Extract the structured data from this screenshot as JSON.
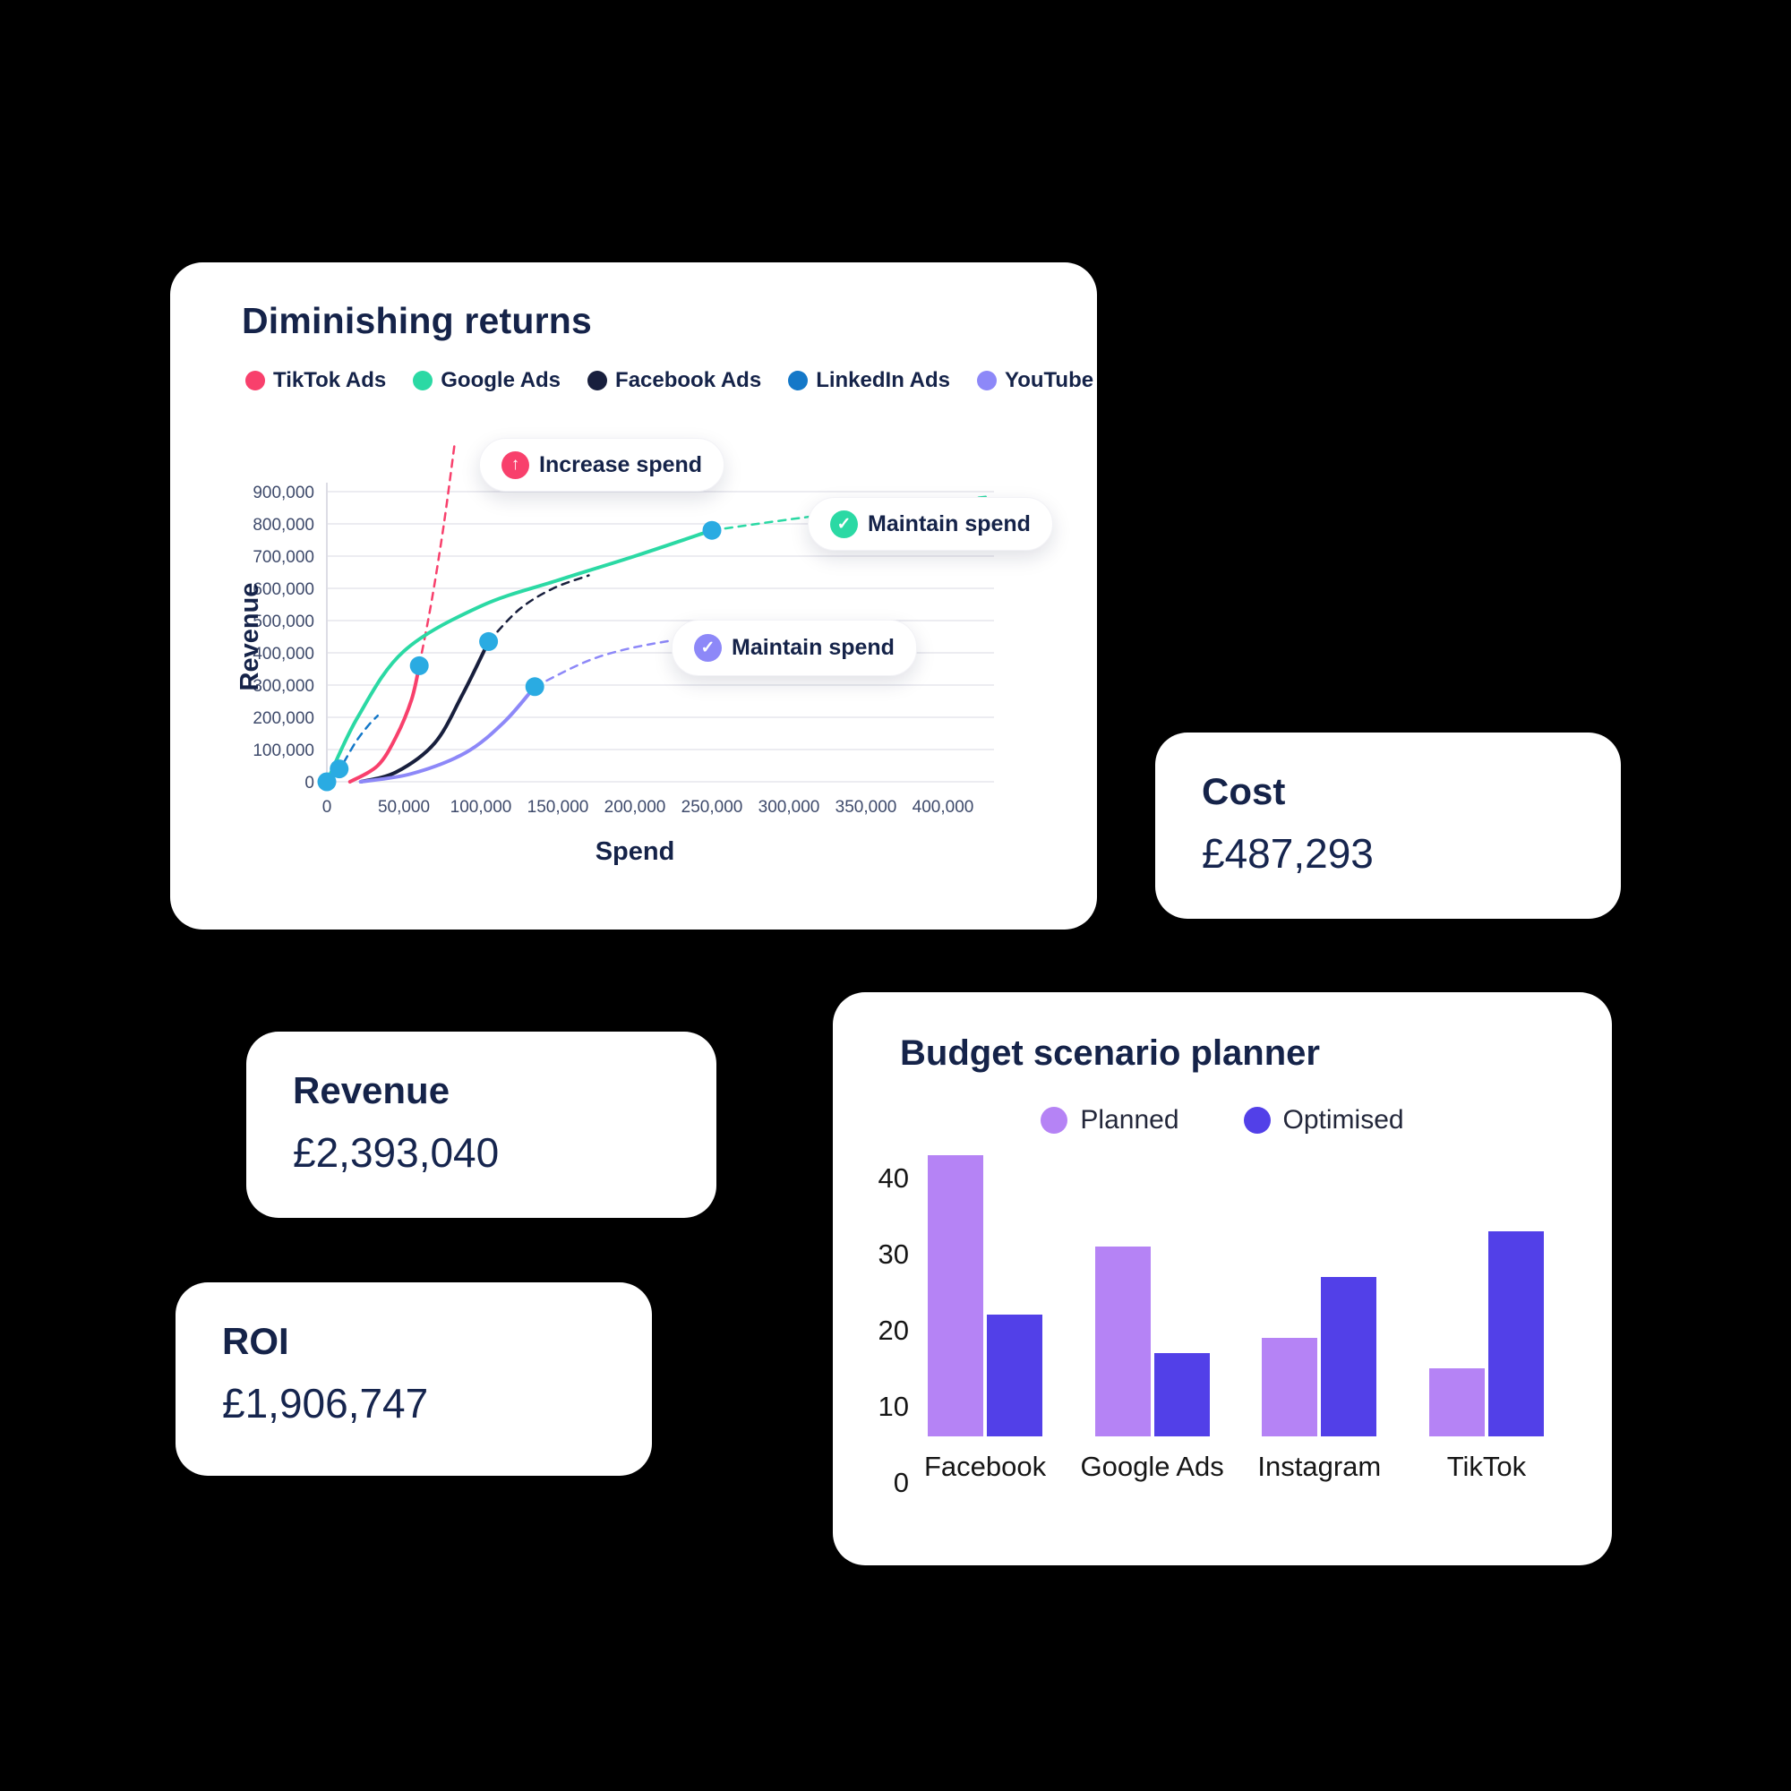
{
  "theme": {
    "background": "#000000",
    "card_bg": "#FFFFFF",
    "heading_color": "#152349",
    "tick_color": "#3E4A6B",
    "grid_color": "#ECECF1",
    "marker_color": "#2AABE2"
  },
  "cards": {
    "diminishing": {
      "title": "Diminishing returns",
      "annotations": {
        "increase_spend": {
          "label": "Increase spend",
          "icon": "arrow-up",
          "color": "#F8406C"
        },
        "maintain_spend_green": {
          "label": "Maintain spend",
          "icon": "check",
          "color": "#2BD9A4"
        },
        "maintain_spend_purple": {
          "label": "Maintain spend",
          "icon": "check",
          "color": "#8D88F8"
        }
      }
    },
    "cost": {
      "title": "Cost",
      "value": "£487,293"
    },
    "revenue": {
      "title": "Revenue",
      "value": "£2,393,040"
    },
    "roi": {
      "title": "ROI",
      "value": "£1,906,747"
    },
    "budget": {
      "title": "Budget scenario planner"
    }
  },
  "chart_data": [
    {
      "type": "line",
      "title": "Diminishing returns",
      "xlabel": "Spend",
      "ylabel": "Revenue",
      "xlim": [
        0,
        400000
      ],
      "ylim": [
        0,
        900000
      ],
      "x_ticks": [
        0,
        50000,
        100000,
        150000,
        200000,
        250000,
        300000,
        350000,
        400000
      ],
      "y_ticks": [
        0,
        100000,
        200000,
        300000,
        400000,
        500000,
        600000,
        700000,
        800000,
        900000
      ],
      "grid": "horizontal",
      "legend_position": "top",
      "note": "solid = actual spend curve, dashed = projected continuation, dot = current spend point",
      "series": [
        {
          "name": "TikTok Ads",
          "color": "#F8406C",
          "annotation": "Increase spend",
          "solid": [
            [
              15000,
              0
            ],
            [
              33000,
              50000
            ],
            [
              45000,
              140000
            ],
            [
              55000,
              255000
            ],
            [
              60000,
              360000
            ]
          ],
          "dashed": [
            [
              60000,
              360000
            ],
            [
              68000,
              560000
            ],
            [
              76000,
              800000
            ],
            [
              83000,
              1050000
            ]
          ],
          "markers": [
            [
              60000,
              360000
            ]
          ]
        },
        {
          "name": "Google Ads",
          "color": "#2BD9A4",
          "annotation": "Maintain spend",
          "solid": [
            [
              0,
              0
            ],
            [
              20000,
              200000
            ],
            [
              50000,
              405000
            ],
            [
              100000,
              545000
            ],
            [
              150000,
              625000
            ],
            [
              200000,
              700000
            ],
            [
              250000,
              780000
            ]
          ],
          "dashed": [
            [
              250000,
              780000
            ],
            [
              310000,
              820000
            ],
            [
              370000,
              855000
            ],
            [
              430000,
              885000
            ]
          ],
          "markers": [
            [
              250000,
              780000
            ]
          ]
        },
        {
          "name": "Facebook Ads",
          "color": "#181F3D",
          "annotation": "",
          "solid": [
            [
              22000,
              0
            ],
            [
              45000,
              30000
            ],
            [
              70000,
              120000
            ],
            [
              88000,
              270000
            ],
            [
              105000,
              435000
            ]
          ],
          "dashed": [
            [
              105000,
              435000
            ],
            [
              125000,
              535000
            ],
            [
              147000,
              600000
            ],
            [
              170000,
              640000
            ]
          ],
          "markers": [
            [
              105000,
              435000
            ]
          ]
        },
        {
          "name": "LinkedIn Ads",
          "color": "#1478C8",
          "annotation": "",
          "solid": [
            [
              0,
              0
            ],
            [
              8000,
              40000
            ]
          ],
          "dashed": [
            [
              11000,
              60000
            ],
            [
              19000,
              125000
            ],
            [
              27000,
              175000
            ],
            [
              33000,
              205000
            ]
          ],
          "markers": [
            [
              0,
              0
            ],
            [
              8000,
              40000
            ]
          ]
        },
        {
          "name": "YouTube",
          "color": "#8D88F8",
          "annotation": "Maintain spend",
          "solid": [
            [
              22000,
              0
            ],
            [
              55000,
              25000
            ],
            [
              90000,
              90000
            ],
            [
              115000,
              185000
            ],
            [
              135000,
              295000
            ]
          ],
          "dashed": [
            [
              135000,
              295000
            ],
            [
              175000,
              385000
            ],
            [
              220000,
              435000
            ],
            [
              268000,
              458000
            ]
          ],
          "markers": [
            [
              135000,
              295000
            ]
          ]
        }
      ]
    },
    {
      "type": "bar",
      "title": "Budget scenario planner",
      "categories": [
        "Facebook",
        "Google Ads",
        "Instagram",
        "TikTok"
      ],
      "series": [
        {
          "name": "Planned",
          "color": "#B583F5",
          "values": [
            37,
            25,
            13,
            9
          ]
        },
        {
          "name": "Optimised",
          "color": "#5240E8",
          "values": [
            16,
            11,
            21,
            27
          ]
        }
      ],
      "ylim": [
        0,
        40
      ],
      "y_ticks": [
        0,
        10,
        20,
        30,
        40
      ],
      "grid": false,
      "legend_position": "top"
    }
  ]
}
